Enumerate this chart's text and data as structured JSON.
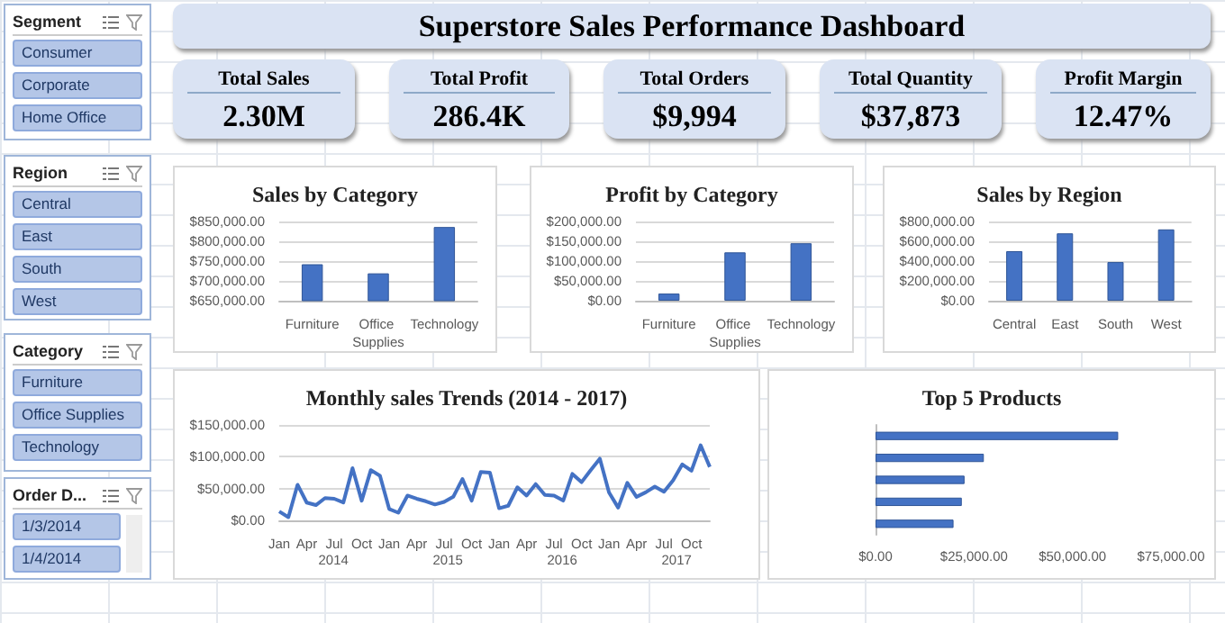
{
  "chart_data": [
    {
      "type": "other",
      "title": "Superstore Sales Performance Dashboard"
    },
    {
      "type": "other",
      "title": "Total Sales",
      "annotations": [
        "2.30M"
      ]
    },
    {
      "type": "other",
      "title": "Total Profit",
      "annotations": [
        "286.4K"
      ]
    },
    {
      "type": "other",
      "title": "Total Orders",
      "annotations": [
        "$9,994"
      ]
    },
    {
      "type": "other",
      "title": "Total Quantity",
      "annotations": [
        "$37,873"
      ]
    },
    {
      "type": "other",
      "title": "Profit Margin",
      "annotations": [
        "12.47%"
      ]
    },
    {
      "type": "other",
      "title": "Segment",
      "annotations": [
        "Consumer",
        "Corporate",
        "Home Office"
      ]
    },
    {
      "type": "other",
      "title": "Region",
      "annotations": [
        "Central",
        "East",
        "South",
        "West"
      ]
    },
    {
      "type": "other",
      "title": "Category",
      "annotations": [
        "Furniture",
        "Office Supplies",
        "Technology"
      ]
    },
    {
      "type": "other",
      "title": "Order D...",
      "annotations": [
        "1/3/2014",
        "1/4/2014"
      ]
    },
    {
      "type": "bar",
      "title": "Sales by Category",
      "categories": [
        "Furniture",
        "Office Supplies",
        "Technology"
      ],
      "values": [
        742000,
        719000,
        836000
      ],
      "color": "#4472c4",
      "ylim": [
        650000,
        850000
      ],
      "yticks": [
        {
          "value": 650000,
          "label": "$650,000.00"
        },
        {
          "value": 700000,
          "label": "$700,000.00"
        },
        {
          "value": 750000,
          "label": "$750,000.00"
        },
        {
          "value": 800000,
          "label": "$800,000.00"
        },
        {
          "value": 850000,
          "label": "$850,000.00"
        }
      ],
      "grid": "y"
    },
    {
      "type": "bar",
      "title": "Profit by Category",
      "categories": [
        "Furniture",
        "Office Supplies",
        "Technology"
      ],
      "values": [
        18000,
        122000,
        145000
      ],
      "color": "#4472c4",
      "ylim": [
        0,
        200000
      ],
      "yticks": [
        {
          "value": 0,
          "label": "$0.00"
        },
        {
          "value": 50000,
          "label": "$50,000.00"
        },
        {
          "value": 100000,
          "label": "$100,000.00"
        },
        {
          "value": 150000,
          "label": "$150,000.00"
        },
        {
          "value": 200000,
          "label": "$200,000.00"
        }
      ],
      "grid": "y"
    },
    {
      "type": "bar",
      "title": "Sales by Region",
      "categories": [
        "Central",
        "East",
        "South",
        "West"
      ],
      "values": [
        500000,
        680000,
        390000,
        720000
      ],
      "color": "#4472c4",
      "ylim": [
        0,
        800000
      ],
      "yticks": [
        {
          "value": 0,
          "label": "$0.00"
        },
        {
          "value": 200000,
          "label": "$200,000.00"
        },
        {
          "value": 400000,
          "label": "$400,000.00"
        },
        {
          "value": 600000,
          "label": "$600,000.00"
        },
        {
          "value": 800000,
          "label": "$800,000.00"
        }
      ],
      "grid": "y"
    },
    {
      "type": "line",
      "title": "Monthly sales Trends (2014 - 2017)",
      "categories": [
        "Jan",
        null,
        null,
        "Apr",
        null,
        null,
        "Jul",
        null,
        null,
        "Oct",
        null,
        null,
        "Jan",
        null,
        null,
        "Apr",
        null,
        null,
        "Jul",
        null,
        null,
        "Oct",
        null,
        null,
        "Jan",
        null,
        null,
        "Apr",
        null,
        null,
        "Jul",
        null,
        null,
        "Oct",
        null,
        null,
        "Jan",
        null,
        null,
        "Apr",
        null,
        null,
        "Jul",
        null,
        null,
        "Oct",
        null,
        null
      ],
      "values": [
        14000,
        5000,
        56000,
        28000,
        24000,
        35000,
        34000,
        28000,
        82000,
        31000,
        79000,
        70000,
        18000,
        12000,
        39000,
        34000,
        30000,
        25000,
        29000,
        37000,
        65000,
        31000,
        76000,
        75000,
        19000,
        23000,
        52000,
        39000,
        57000,
        40000,
        39000,
        31000,
        73000,
        60000,
        79000,
        97000,
        44000,
        20000,
        59000,
        37000,
        44000,
        53000,
        45000,
        63000,
        88000,
        78000,
        118000,
        84000
      ],
      "color": "#4472c4",
      "marker": "none",
      "ylim": [
        0,
        150000
      ],
      "yticks": [
        {
          "value": 0,
          "label": "$0.00"
        },
        {
          "value": 50000,
          "label": "$50,000.00"
        },
        {
          "value": 100000,
          "label": "$100,000.00"
        },
        {
          "value": 150000,
          "label": "$150,000.00"
        }
      ],
      "grid": "y",
      "annotations": [
        "2014",
        "2015",
        "2016",
        "2017"
      ]
    },
    {
      "type": "bar",
      "title": "Top 5 Products",
      "orientation": "horizontal",
      "categories": [
        null,
        null,
        null,
        null,
        null
      ],
      "values": [
        61600,
        27500,
        22600,
        21900,
        19800
      ],
      "color": "#4472c4",
      "xlim": [
        0,
        75000
      ],
      "xticks": [
        {
          "value": 0,
          "label": "$0.00"
        },
        {
          "value": 25000,
          "label": "$25,000.00"
        },
        {
          "value": 50000,
          "label": "$50,000.00"
        },
        {
          "value": 75000,
          "label": "$75,000.00"
        }
      ]
    }
  ]
}
